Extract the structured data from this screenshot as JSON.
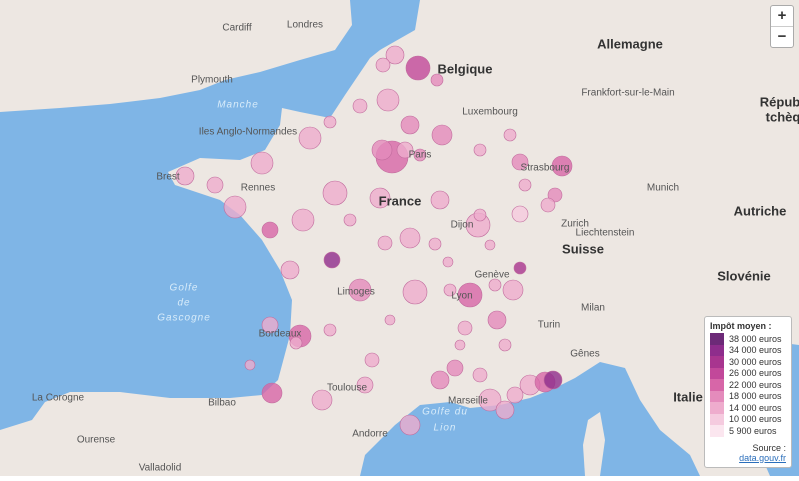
{
  "map": {
    "labels": [
      "Londres",
      "Cardiff",
      "Plymouth",
      "Manche",
      "Iles Anglo-Normandes",
      "Belgique",
      "Allemagne",
      "Luxembourg",
      "Frankfort-sur-le-Main",
      "Répub",
      "tchèq",
      "Strasbourg",
      "Munich",
      "Autriche",
      "Zurich",
      "Liechtenstein",
      "Suisse",
      "Dijon",
      "Genève",
      "France",
      "Rennes",
      "Brest",
      "Paris",
      "Limoges",
      "Lyon",
      "Bordeaux",
      "Toulouse",
      "Marseille",
      "Golfe",
      "de",
      "Gascogne",
      "Golfe du",
      "Lion",
      "Milan",
      "Turin",
      "Gênes",
      "Italie",
      "Slovénie",
      "Bilbao",
      "La Corogne",
      "Ourense",
      "Valladolid",
      "Andorre"
    ]
  },
  "zoom": {
    "in": "+",
    "out": "−"
  },
  "legend": {
    "title": "Impôt moyen :",
    "items": [
      {
        "label": "38 000 euros",
        "color": "#6d2a78"
      },
      {
        "label": "34 000 euros",
        "color": "#8e2d8c"
      },
      {
        "label": "30 000 euros",
        "color": "#a8358f"
      },
      {
        "label": "26 000 euros",
        "color": "#c2489a"
      },
      {
        "label": "22 000 euros",
        "color": "#d766a8"
      },
      {
        "label": "18 000 euros",
        "color": "#e48bbc"
      },
      {
        "label": "14 000 euros",
        "color": "#eeaccd"
      },
      {
        "label": "10 000 euros",
        "color": "#f5cbdf"
      },
      {
        "label": "5 900 euros",
        "color": "#fbe6ef"
      }
    ],
    "source_prefix": "Source :",
    "source_link": "data.gouv.fr"
  }
}
